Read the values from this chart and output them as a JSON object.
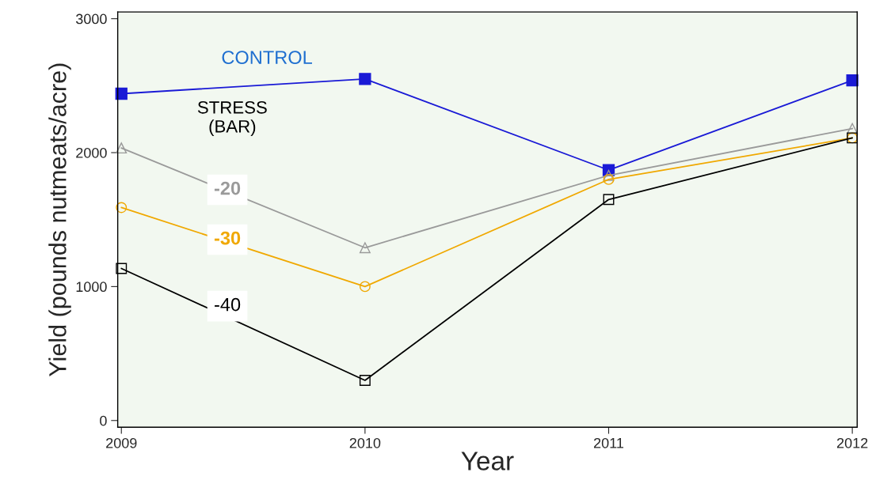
{
  "chart_data": {
    "type": "line",
    "xlabel": "Year",
    "ylabel": "Yield (pounds nutmeats/acre)",
    "legend_title": "STRESS\n(BAR)",
    "x": [
      2009,
      2010,
      2011,
      2012
    ],
    "series": [
      {
        "name": "CONTROL",
        "color": "#1a1ad6",
        "marker": "square",
        "values": [
          2440,
          2550,
          1870,
          2540
        ]
      },
      {
        "name": "-20",
        "color": "#9a9a9a",
        "marker": "triangle",
        "values": [
          2035,
          1290,
          1830,
          2180
        ]
      },
      {
        "name": "-30",
        "color": "#f0a800",
        "marker": "circle",
        "values": [
          1590,
          1000,
          1800,
          2110
        ]
      },
      {
        "name": "-40",
        "color": "#000000",
        "marker": "square",
        "values": [
          1135,
          300,
          1650,
          2110
        ]
      }
    ],
    "xlim": [
      2008.985,
      2012.02
    ],
    "ylim": [
      -50,
      3050
    ],
    "xticks": [
      2009,
      2010,
      2011,
      2012
    ],
    "yticks": [
      0,
      1000,
      2000,
      3000
    ],
    "grid": false,
    "legend": false,
    "line_style": "solid"
  }
}
